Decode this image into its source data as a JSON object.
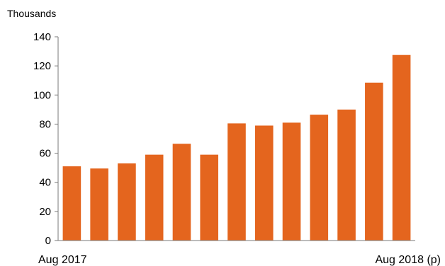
{
  "chart_data": {
    "type": "bar",
    "title": "",
    "xlabel": "",
    "ylabel": "Thousands",
    "ylim": [
      0,
      140
    ],
    "yticks": [
      0,
      20,
      40,
      60,
      80,
      100,
      120,
      140
    ],
    "x_tick_labels": [
      "Aug 2017",
      "Aug 2018 (p)"
    ],
    "values": [
      51,
      49.5,
      53,
      59,
      66.5,
      59,
      80.5,
      79,
      81,
      86.5,
      90,
      108.5,
      127.5
    ],
    "bar_color": "#E4651E",
    "grid": false,
    "legend": "none"
  }
}
